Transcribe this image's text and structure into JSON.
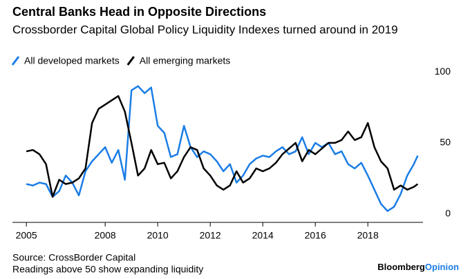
{
  "chart_data": {
    "type": "line",
    "title": "Central Banks Head in Opposite Directions",
    "subtitle": "Crossborder Capital Global Policy Liquidity Indexes turned around in 2019",
    "source": "Source: CrossBorder Capital",
    "note": "Readings above 50 show expanding liquidity",
    "brand": "Bloomberg",
    "brand_suffix": "Opinion",
    "x": [
      2005.0,
      2005.25,
      2005.5,
      2005.75,
      2006.0,
      2006.25,
      2006.5,
      2006.75,
      2007.0,
      2007.25,
      2007.5,
      2007.75,
      2008.0,
      2008.25,
      2008.5,
      2008.75,
      2009.0,
      2009.25,
      2009.5,
      2009.75,
      2010.0,
      2010.25,
      2010.5,
      2010.75,
      2011.0,
      2011.25,
      2011.5,
      2011.75,
      2012.0,
      2012.25,
      2012.5,
      2012.75,
      2013.0,
      2013.25,
      2013.5,
      2013.75,
      2014.0,
      2014.25,
      2014.5,
      2014.75,
      2015.0,
      2015.25,
      2015.5,
      2015.75,
      2016.0,
      2016.25,
      2016.5,
      2016.75,
      2017.0,
      2017.25,
      2017.5,
      2017.75,
      2018.0,
      2018.25,
      2018.5,
      2018.75,
      2019.0,
      2019.25,
      2019.5,
      2019.75,
      2019.9
    ],
    "series": [
      {
        "name": "All developed markets",
        "color": "#1a7de6",
        "values": [
          21,
          20,
          22,
          21,
          12,
          16,
          27,
          22,
          13,
          30,
          37,
          42,
          47,
          36,
          45,
          24,
          87,
          90,
          85,
          89,
          62,
          57,
          40,
          42,
          62,
          47,
          40,
          44,
          42,
          37,
          30,
          35,
          22,
          27,
          35,
          39,
          41,
          40,
          44,
          47,
          42,
          44,
          54,
          42,
          50,
          47,
          50,
          42,
          44,
          35,
          32,
          36,
          27,
          17,
          7,
          2,
          5,
          14,
          27,
          35,
          41
        ]
      },
      {
        "name": "All emerging markets",
        "color": "#000000",
        "values": [
          44,
          45,
          42,
          35,
          12,
          24,
          21,
          22,
          25,
          32,
          64,
          74,
          77,
          80,
          83,
          72,
          50,
          27,
          32,
          45,
          35,
          36,
          25,
          30,
          40,
          47,
          45,
          32,
          27,
          20,
          17,
          20,
          30,
          22,
          25,
          32,
          30,
          32,
          36,
          42,
          46,
          50,
          37,
          45,
          42,
          46,
          50,
          50,
          52,
          58,
          52,
          54,
          64,
          47,
          37,
          32,
          17,
          20,
          17,
          19,
          21
        ]
      }
    ],
    "xlim": [
      2004.47,
      2020.1
    ],
    "ylim": [
      -6,
      102
    ],
    "xticks": [
      2005,
      2008,
      2010,
      2012,
      2014,
      2016,
      2018
    ],
    "yticks": [
      0,
      50,
      100
    ],
    "grid": false
  }
}
